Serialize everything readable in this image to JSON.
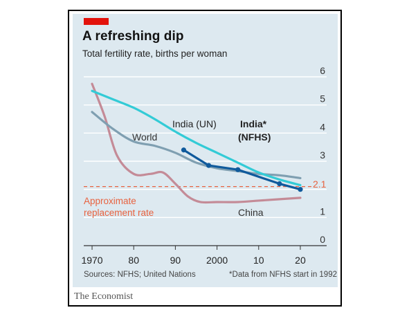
{
  "title": "A refreshing dip",
  "subtitle": "Total fertility rate, births per woman",
  "source": "Sources: NFHS; United Nations",
  "footnote": "*Data from NFHS start in 1992",
  "brand": "The Economist",
  "colors": {
    "accent": "#e3120b",
    "background": "#dde9f0",
    "india_un": "#33cbd6",
    "india_nfhs": "#0f5a9c",
    "world": "#7f9fb1",
    "china": "#c48b97",
    "replacement": "#e8623f"
  },
  "chart_data": {
    "type": "line",
    "title": "A refreshing dip",
    "subtitle": "Total fertility rate, births per woman",
    "xlabel": "",
    "ylabel": "",
    "xlim": [
      1968,
      2022
    ],
    "ylim": [
      0,
      6
    ],
    "x_ticks": [
      1970,
      1980,
      1990,
      2000,
      2010,
      2020
    ],
    "x_tick_labels": [
      "1970",
      "80",
      "90",
      "2000",
      "10",
      "20"
    ],
    "y_ticks": [
      0,
      1,
      2,
      3,
      4,
      5,
      6
    ],
    "y_tick_labels": [
      "0",
      "1",
      "",
      "3",
      "4",
      "5",
      "6"
    ],
    "grid": true,
    "y_axis_position": "right",
    "series": [
      {
        "name": "India (UN)",
        "key": "india_un",
        "x": [
          1970,
          1975,
          1980,
          1985,
          1990,
          1995,
          2000,
          2005,
          2010,
          2015,
          2020
        ],
        "values": [
          5.5,
          5.2,
          4.9,
          4.5,
          4.05,
          3.65,
          3.3,
          2.95,
          2.6,
          2.35,
          2.15
        ]
      },
      {
        "name": "India* (NFHS)",
        "key": "india_nfhs",
        "x": [
          1992,
          1998,
          2005,
          2015,
          2020
        ],
        "values": [
          3.4,
          2.85,
          2.7,
          2.2,
          2.0
        ]
      },
      {
        "name": "World",
        "key": "world",
        "x": [
          1970,
          1975,
          1980,
          1985,
          1990,
          1995,
          2000,
          2005,
          2010,
          2015,
          2020
        ],
        "values": [
          4.75,
          4.15,
          3.7,
          3.55,
          3.3,
          2.95,
          2.75,
          2.65,
          2.55,
          2.5,
          2.4
        ]
      },
      {
        "name": "China",
        "key": "china",
        "x": [
          1970,
          1973,
          1976,
          1980,
          1984,
          1987,
          1990,
          1993,
          1996,
          2000,
          2005,
          2010,
          2015,
          2020
        ],
        "values": [
          5.75,
          4.6,
          3.2,
          2.55,
          2.55,
          2.6,
          2.2,
          1.75,
          1.55,
          1.55,
          1.55,
          1.6,
          1.65,
          1.7
        ]
      }
    ],
    "reference_line": {
      "label": "Approximate replacement rate",
      "value": 2.1,
      "value_label": "2.1"
    },
    "annotations": [
      "India (UN)",
      "India*",
      "(NFHS)",
      "World",
      "China"
    ]
  }
}
